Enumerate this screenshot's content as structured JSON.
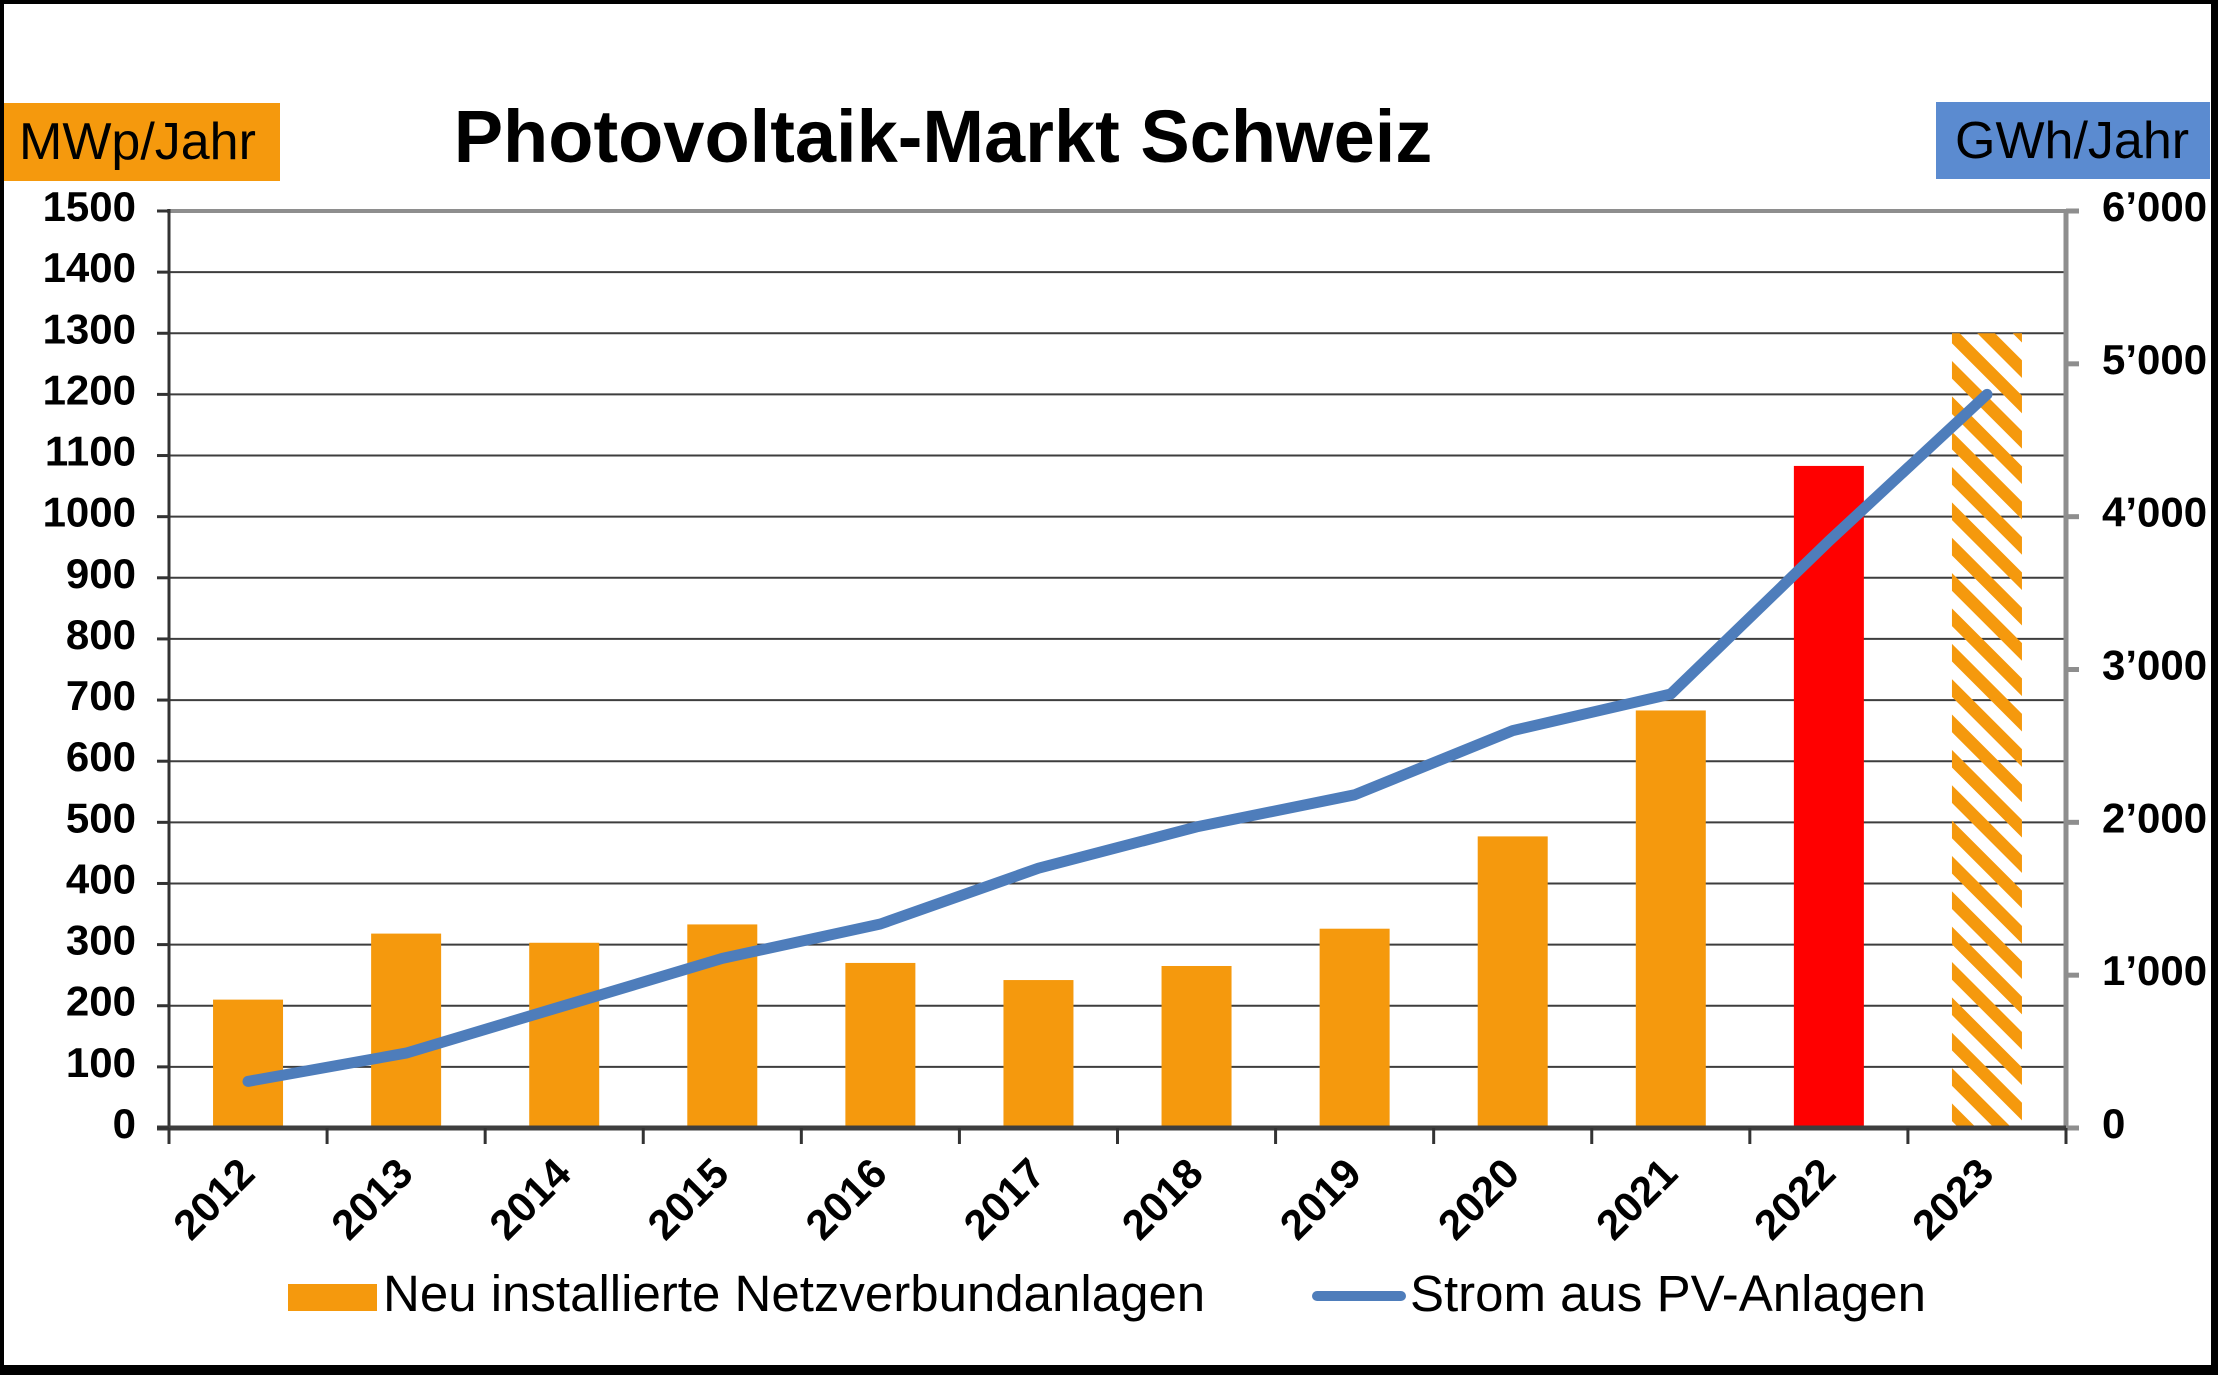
{
  "title": "Photovoltaik-Markt Schweiz",
  "left_axis": {
    "unit_label": "MWp/Jahr",
    "min": 0,
    "max": 1500,
    "step": 100,
    "tick_labels": [
      "0",
      "100",
      "200",
      "300",
      "400",
      "500",
      "600",
      "700",
      "800",
      "900",
      "1000",
      "1100",
      "1200",
      "1300",
      "1400",
      "1500"
    ]
  },
  "right_axis": {
    "unit_label": "GWh/Jahr",
    "min": 0,
    "max": 6000,
    "step": 1000,
    "tick_labels": [
      "0",
      "1’000",
      "2’000",
      "3’000",
      "4’000",
      "5’000",
      "6’000"
    ]
  },
  "legend": {
    "bar_label": "Neu installierte Netzverbundanlagen",
    "line_label": "Strom aus PV-Anlagen"
  },
  "chart_data": {
    "type": "combo-bar-line",
    "title": "Photovoltaik-Markt Schweiz",
    "categories": [
      "2012",
      "2013",
      "2014",
      "2015",
      "2016",
      "2017",
      "2018",
      "2019",
      "2020",
      "2021",
      "2022",
      "2023"
    ],
    "series": [
      {
        "name": "Neu installierte Netzverbundanlagen",
        "type": "bar",
        "axis": "left",
        "unit": "MWp/Jahr",
        "values": [
          210,
          318,
          303,
          333,
          270,
          242,
          265,
          326,
          477,
          683,
          1083,
          1300
        ],
        "point_styles": [
          "orange",
          "orange",
          "orange",
          "orange",
          "orange",
          "orange",
          "orange",
          "orange",
          "orange",
          "orange",
          "red",
          "hatched"
        ]
      },
      {
        "name": "Strom aus PV-Anlagen",
        "type": "line",
        "axis": "right",
        "unit": "GWh/Jahr",
        "values": [
          305,
          490,
          800,
          1110,
          1335,
          1700,
          1970,
          2180,
          2600,
          2840,
          3840,
          4800
        ]
      }
    ],
    "ylim_left": [
      0,
      1500
    ],
    "ylim_right": [
      0,
      6000
    ],
    "grid": true,
    "legend_position": "bottom"
  },
  "colors": {
    "bar_orange": "#F5990D",
    "bar_red": "#FF0000",
    "line_blue": "#4E7DBB",
    "unit_box_orange": "#F5990D",
    "unit_box_blue": "#5B8BD0",
    "gridline": "#3E3E3E",
    "axis_dark": "#333333",
    "border_gray": "#8E8E8E",
    "frame_black": "#000000",
    "text_black": "#000000"
  }
}
